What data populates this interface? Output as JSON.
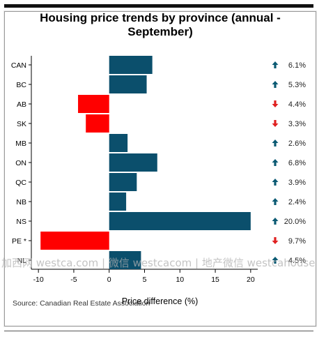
{
  "chart_data": {
    "type": "bar",
    "orientation": "horizontal",
    "title": "Housing price trends by province (annual - September)",
    "xlabel": "Price difference (%)",
    "ylabel": "",
    "xlim": [
      -11,
      21
    ],
    "xticks": [
      -10,
      -5,
      0,
      5,
      10,
      15,
      20
    ],
    "grid": false,
    "categories": [
      "CAN",
      "BC",
      "AB",
      "SK",
      "MB",
      "ON",
      "QC",
      "NB",
      "NS",
      "PE *",
      "NL"
    ],
    "values": [
      6.1,
      5.3,
      -4.4,
      -3.3,
      2.6,
      6.8,
      3.9,
      2.4,
      20.0,
      -9.7,
      4.5
    ],
    "labels": [
      "6.1%",
      "5.3%",
      "4.4%",
      "3.3%",
      "2.6%",
      "6.8%",
      "3.9%",
      "2.4%",
      "20.0%",
      "9.7%",
      "4.5%"
    ],
    "colors": {
      "positive": "#0b4f6c",
      "negative": "#ff0000",
      "arrow_up": "#0b5a73",
      "arrow_down": "#e02020"
    }
  },
  "title_lines": [
    "Housing price trends by province (annual -",
    "September)"
  ],
  "source": "Source: Canadian Real Estate Association",
  "watermark": "加西网 westca.com | 微信 westcacom | 地产微信 westcahouse"
}
